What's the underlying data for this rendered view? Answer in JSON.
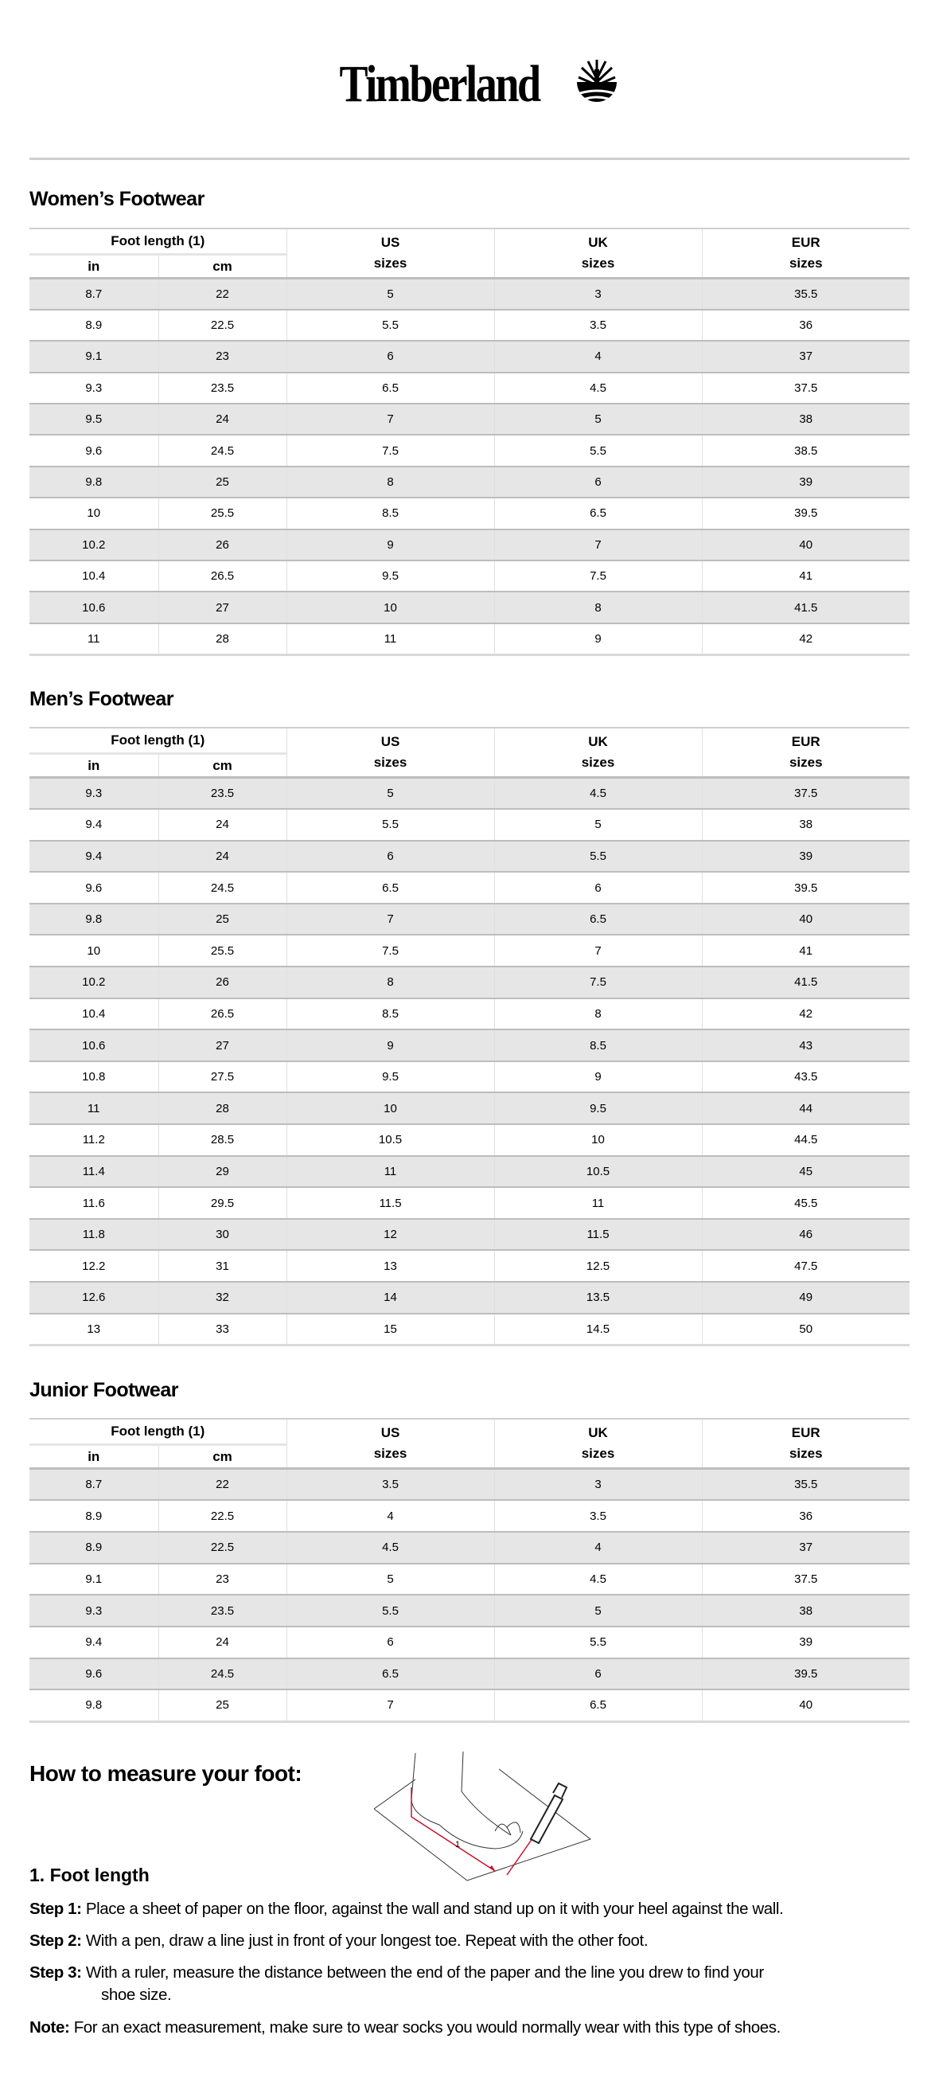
{
  "brand": {
    "name": "Timberland",
    "logo_icon": "tree-icon"
  },
  "columns": {
    "foot_length": "Foot length (1)",
    "in": "in",
    "cm": "cm",
    "us": "US",
    "uk": "UK",
    "eur": "EUR",
    "sizes": "sizes"
  },
  "sections": [
    {
      "title": "Women’s Footwear",
      "rows": [
        [
          "8.7",
          "22",
          "5",
          "3",
          "35.5"
        ],
        [
          "8.9",
          "22.5",
          "5.5",
          "3.5",
          "36"
        ],
        [
          "9.1",
          "23",
          "6",
          "4",
          "37"
        ],
        [
          "9.3",
          "23.5",
          "6.5",
          "4.5",
          "37.5"
        ],
        [
          "9.5",
          "24",
          "7",
          "5",
          "38"
        ],
        [
          "9.6",
          "24.5",
          "7.5",
          "5.5",
          "38.5"
        ],
        [
          "9.8",
          "25",
          "8",
          "6",
          "39"
        ],
        [
          "10",
          "25.5",
          "8.5",
          "6.5",
          "39.5"
        ],
        [
          "10.2",
          "26",
          "9",
          "7",
          "40"
        ],
        [
          "10.4",
          "26.5",
          "9.5",
          "7.5",
          "41"
        ],
        [
          "10.6",
          "27",
          "10",
          "8",
          "41.5"
        ],
        [
          "11",
          "28",
          "11",
          "9",
          "42"
        ]
      ]
    },
    {
      "title": "Men’s Footwear",
      "rows": [
        [
          "9.3",
          "23.5",
          "5",
          "4.5",
          "37.5"
        ],
        [
          "9.4",
          "24",
          "5.5",
          "5",
          "38"
        ],
        [
          "9.4",
          "24",
          "6",
          "5.5",
          "39"
        ],
        [
          "9.6",
          "24.5",
          "6.5",
          "6",
          "39.5"
        ],
        [
          "9.8",
          "25",
          "7",
          "6.5",
          "40"
        ],
        [
          "10",
          "25.5",
          "7.5",
          "7",
          "41"
        ],
        [
          "10.2",
          "26",
          "8",
          "7.5",
          "41.5"
        ],
        [
          "10.4",
          "26.5",
          "8.5",
          "8",
          "42"
        ],
        [
          "10.6",
          "27",
          "9",
          "8.5",
          "43"
        ],
        [
          "10.8",
          "27.5",
          "9.5",
          "9",
          "43.5"
        ],
        [
          "11",
          "28",
          "10",
          "9.5",
          "44"
        ],
        [
          "11.2",
          "28.5",
          "10.5",
          "10",
          "44.5"
        ],
        [
          "11.4",
          "29",
          "11",
          "10.5",
          "45"
        ],
        [
          "11.6",
          "29.5",
          "11.5",
          "11",
          "45.5"
        ],
        [
          "11.8",
          "30",
          "12",
          "11.5",
          "46"
        ],
        [
          "12.2",
          "31",
          "13",
          "12.5",
          "47.5"
        ],
        [
          "12.6",
          "32",
          "14",
          "13.5",
          "49"
        ],
        [
          "13",
          "33",
          "15",
          "14.5",
          "50"
        ]
      ]
    },
    {
      "title": "Junior Footwear",
      "rows": [
        [
          "8.7",
          "22",
          "3.5",
          "3",
          "35.5"
        ],
        [
          "8.9",
          "22.5",
          "4",
          "3.5",
          "36"
        ],
        [
          "8.9",
          "22.5",
          "4.5",
          "4",
          "37"
        ],
        [
          "9.1",
          "23",
          "5",
          "4.5",
          "37.5"
        ],
        [
          "9.3",
          "23.5",
          "5.5",
          "5",
          "38"
        ],
        [
          "9.4",
          "24",
          "6",
          "5.5",
          "39"
        ],
        [
          "9.6",
          "24.5",
          "6.5",
          "6",
          "39.5"
        ],
        [
          "9.8",
          "25",
          "7",
          "6.5",
          "40"
        ]
      ]
    }
  ],
  "measure": {
    "title": "How to measure your foot:",
    "diagram_label": "1",
    "subtitle": "1. Foot length",
    "steps": [
      {
        "label": "Step 1:",
        "text": "Place a sheet of paper on the floor, against the wall and stand up on it with your heel against the wall."
      },
      {
        "label": "Step 2:",
        "text": "With a pen, draw a line just in front of your longest toe. Repeat with the other foot."
      },
      {
        "label": "Step 3:",
        "text": "With a ruler, measure the distance between the end of the paper and the line you drew to find your",
        "text_cont": "shoe size."
      }
    ],
    "note": {
      "label": "Note:",
      "text": "For an exact measurement, make sure to wear socks you would normally wear with this type of shoes."
    }
  },
  "colors": {
    "row_shade": "#e6e6e6",
    "rule": "#cfcfcf",
    "diagram_accent": "#c8102e"
  }
}
